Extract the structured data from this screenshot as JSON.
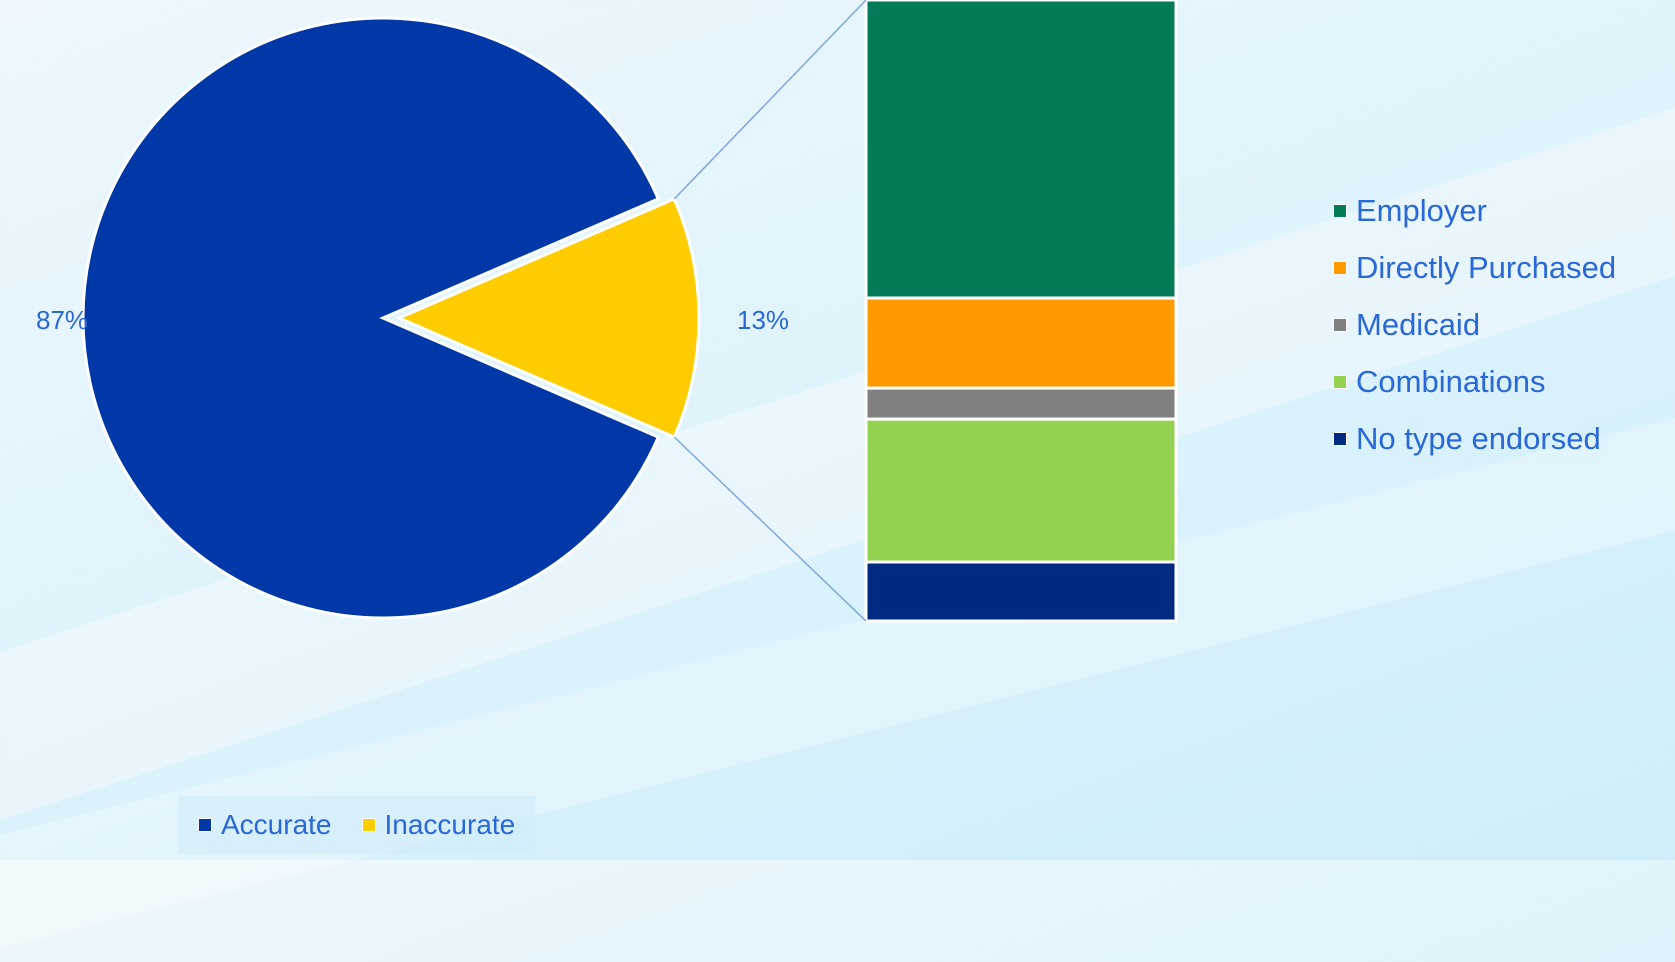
{
  "chart_data": {
    "type": "pie",
    "pie": {
      "slices": [
        {
          "label": "Accurate",
          "value": 87,
          "data_label": "87%",
          "color": "#0038a8"
        },
        {
          "label": "Inaccurate",
          "value": 13,
          "data_label": "13%",
          "color": "#ffcc00"
        }
      ],
      "exploded": "Inaccurate",
      "legend_position": "bottom"
    },
    "breakdown": {
      "type": "bar",
      "stacked": true,
      "of": "Inaccurate",
      "categories": [
        "Employer",
        "Directly Purchased",
        "Medicaid",
        "Combinations",
        "No type endorsed"
      ],
      "values": [
        48,
        14.5,
        5,
        23,
        9.5
      ],
      "colors": [
        "#037b58",
        "#ff9900",
        "#808080",
        "#93d150",
        "#002a80"
      ],
      "legend_position": "right"
    }
  }
}
